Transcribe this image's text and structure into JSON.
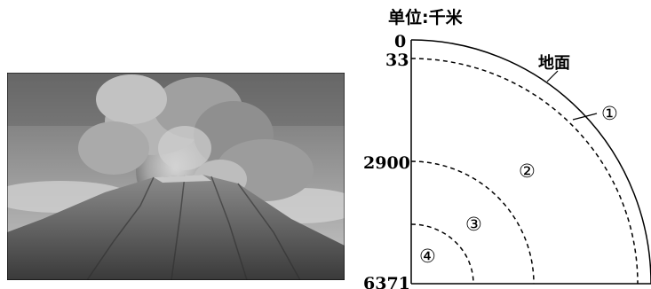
{
  "unit_label": "单位:千米",
  "depths": [
    "0",
    "33",
    "2900",
    "6371"
  ],
  "ground_label": "地面",
  "layers": [
    "①",
    "②",
    "③",
    "④"
  ]
}
